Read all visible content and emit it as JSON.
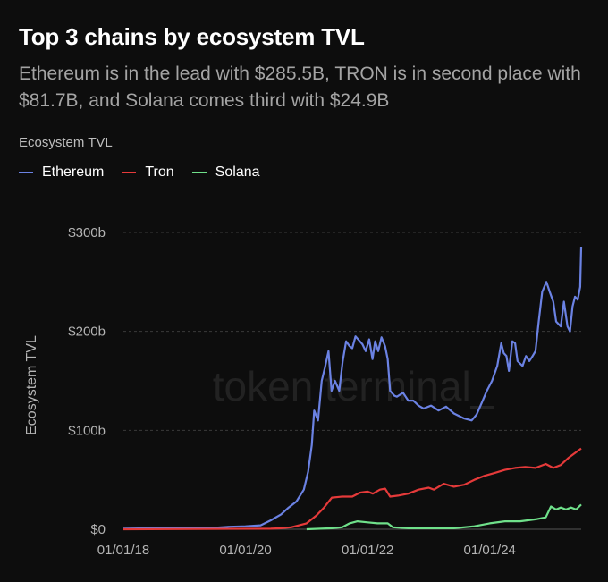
{
  "title": "Top 3 chains by ecosystem TVL",
  "subtitle": "Ethereum is in the lead with $285.5B, TRON is in second place with $81.7B, and Solana comes third with $24.9B",
  "legend_title": "Ecosystem TVL",
  "watermark": "token terminal_",
  "colors": {
    "Ethereum": "#6b82e3",
    "Tron": "#e53a3a",
    "Solana": "#6fe08a",
    "grid": "#3a3a3a",
    "background": "#0d0d0d"
  },
  "chart_data": {
    "type": "line",
    "ylabel": "Ecosystem TVL",
    "xlabel": "",
    "ylim": [
      0,
      300
    ],
    "y_unit": "$b",
    "x_range": [
      "2018-01-01",
      "2025-07-01"
    ],
    "x_ticks": [
      "01/01/18",
      "01/01/20",
      "01/01/22",
      "01/01/24"
    ],
    "y_ticks": [
      "$0",
      "$100b",
      "$200b",
      "$300b"
    ],
    "grid": "horizontal dashed",
    "legend_placement": "top-left",
    "series": [
      {
        "name": "Ethereum",
        "points": [
          [
            "2018-01-01",
            0.5
          ],
          [
            "2018-07-01",
            1
          ],
          [
            "2019-01-01",
            1
          ],
          [
            "2019-07-01",
            1.5
          ],
          [
            "2019-10-01",
            2.5
          ],
          [
            "2020-01-01",
            3
          ],
          [
            "2020-04-01",
            4
          ],
          [
            "2020-06-01",
            9
          ],
          [
            "2020-08-01",
            15
          ],
          [
            "2020-09-15",
            22
          ],
          [
            "2020-11-01",
            28
          ],
          [
            "2020-12-15",
            40
          ],
          [
            "2021-01-10",
            58
          ],
          [
            "2021-02-01",
            85
          ],
          [
            "2021-02-15",
            120
          ],
          [
            "2021-03-10",
            110
          ],
          [
            "2021-04-01",
            150
          ],
          [
            "2021-04-20",
            163
          ],
          [
            "2021-05-12",
            180
          ],
          [
            "2021-05-30",
            140
          ],
          [
            "2021-06-20",
            150
          ],
          [
            "2021-07-15",
            140
          ],
          [
            "2021-08-05",
            170
          ],
          [
            "2021-08-25",
            190
          ],
          [
            "2021-09-15",
            185
          ],
          [
            "2021-10-01",
            183
          ],
          [
            "2021-10-20",
            195
          ],
          [
            "2021-11-10",
            191
          ],
          [
            "2021-12-01",
            187
          ],
          [
            "2021-12-20",
            180
          ],
          [
            "2022-01-10",
            192
          ],
          [
            "2022-01-30",
            172
          ],
          [
            "2022-02-15",
            190
          ],
          [
            "2022-03-05",
            180
          ],
          [
            "2022-03-25",
            194
          ],
          [
            "2022-04-15",
            185
          ],
          [
            "2022-05-01",
            172
          ],
          [
            "2022-05-15",
            140
          ],
          [
            "2022-06-10",
            135
          ],
          [
            "2022-06-25",
            134
          ],
          [
            "2022-08-01",
            138
          ],
          [
            "2022-09-01",
            130
          ],
          [
            "2022-10-01",
            130
          ],
          [
            "2022-11-01",
            125
          ],
          [
            "2022-12-01",
            122
          ],
          [
            "2023-01-15",
            125
          ],
          [
            "2023-03-01",
            120
          ],
          [
            "2023-04-15",
            124
          ],
          [
            "2023-06-01",
            117
          ],
          [
            "2023-08-01",
            112
          ],
          [
            "2023-09-15",
            110
          ],
          [
            "2023-10-15",
            116
          ],
          [
            "2023-11-15",
            128
          ],
          [
            "2023-12-15",
            140
          ],
          [
            "2024-01-15",
            150
          ],
          [
            "2024-02-15",
            165
          ],
          [
            "2024-03-10",
            188
          ],
          [
            "2024-03-25",
            178
          ],
          [
            "2024-04-10",
            175
          ],
          [
            "2024-04-25",
            160
          ],
          [
            "2024-05-15",
            190
          ],
          [
            "2024-06-01",
            188
          ],
          [
            "2024-06-15",
            170
          ],
          [
            "2024-07-15",
            165
          ],
          [
            "2024-08-05",
            175
          ],
          [
            "2024-08-25",
            170
          ],
          [
            "2024-09-10",
            174
          ],
          [
            "2024-10-01",
            180
          ],
          [
            "2024-10-20",
            210
          ],
          [
            "2024-11-10",
            240
          ],
          [
            "2024-12-05",
            250
          ],
          [
            "2024-12-25",
            240
          ],
          [
            "2025-01-15",
            230
          ],
          [
            "2025-02-01",
            210
          ],
          [
            "2025-03-01",
            205
          ],
          [
            "2025-03-20",
            230
          ],
          [
            "2025-04-10",
            205
          ],
          [
            "2025-04-25",
            200
          ],
          [
            "2025-05-10",
            225
          ],
          [
            "2025-05-25",
            235
          ],
          [
            "2025-06-10",
            232
          ],
          [
            "2025-06-25",
            245
          ],
          [
            "2025-07-01",
            285.5
          ]
        ]
      },
      {
        "name": "Tron",
        "points": [
          [
            "2018-01-01",
            0
          ],
          [
            "2020-06-01",
            0.5
          ],
          [
            "2020-08-01",
            1
          ],
          [
            "2020-10-01",
            2
          ],
          [
            "2021-01-01",
            6
          ],
          [
            "2021-03-01",
            14
          ],
          [
            "2021-04-15",
            22
          ],
          [
            "2021-06-01",
            32
          ],
          [
            "2021-08-01",
            33
          ],
          [
            "2021-10-01",
            33
          ],
          [
            "2021-11-15",
            37
          ],
          [
            "2022-01-01",
            38
          ],
          [
            "2022-02-01",
            36
          ],
          [
            "2022-03-15",
            40
          ],
          [
            "2022-04-15",
            41
          ],
          [
            "2022-05-15",
            33
          ],
          [
            "2022-07-01",
            34
          ],
          [
            "2022-09-01",
            36
          ],
          [
            "2022-11-01",
            40
          ],
          [
            "2023-01-01",
            42
          ],
          [
            "2023-02-01",
            40
          ],
          [
            "2023-04-01",
            46
          ],
          [
            "2023-06-01",
            43
          ],
          [
            "2023-08-01",
            45
          ],
          [
            "2023-10-01",
            50
          ],
          [
            "2023-12-01",
            54
          ],
          [
            "2024-02-01",
            57
          ],
          [
            "2024-04-01",
            60
          ],
          [
            "2024-06-01",
            62
          ],
          [
            "2024-08-01",
            63
          ],
          [
            "2024-10-01",
            62
          ],
          [
            "2024-12-01",
            66
          ],
          [
            "2025-01-15",
            62
          ],
          [
            "2025-03-01",
            65
          ],
          [
            "2025-04-15",
            72
          ],
          [
            "2025-06-01",
            78
          ],
          [
            "2025-07-01",
            81.7
          ]
        ]
      },
      {
        "name": "Solana",
        "points": [
          [
            "2021-01-01",
            0
          ],
          [
            "2021-06-01",
            1
          ],
          [
            "2021-08-01",
            2
          ],
          [
            "2021-09-15",
            6
          ],
          [
            "2021-11-01",
            8
          ],
          [
            "2022-01-01",
            7
          ],
          [
            "2022-03-01",
            6
          ],
          [
            "2022-05-01",
            6
          ],
          [
            "2022-06-01",
            2
          ],
          [
            "2022-09-01",
            1
          ],
          [
            "2023-01-01",
            1
          ],
          [
            "2023-06-01",
            1
          ],
          [
            "2023-10-01",
            3
          ],
          [
            "2024-01-01",
            6
          ],
          [
            "2024-04-01",
            8
          ],
          [
            "2024-07-01",
            8
          ],
          [
            "2024-10-01",
            10
          ],
          [
            "2024-12-01",
            12
          ],
          [
            "2025-01-01",
            23
          ],
          [
            "2025-02-01",
            20
          ],
          [
            "2025-03-01",
            22
          ],
          [
            "2025-04-01",
            20
          ],
          [
            "2025-05-01",
            22
          ],
          [
            "2025-06-01",
            20
          ],
          [
            "2025-07-01",
            24.9
          ]
        ]
      }
    ]
  }
}
